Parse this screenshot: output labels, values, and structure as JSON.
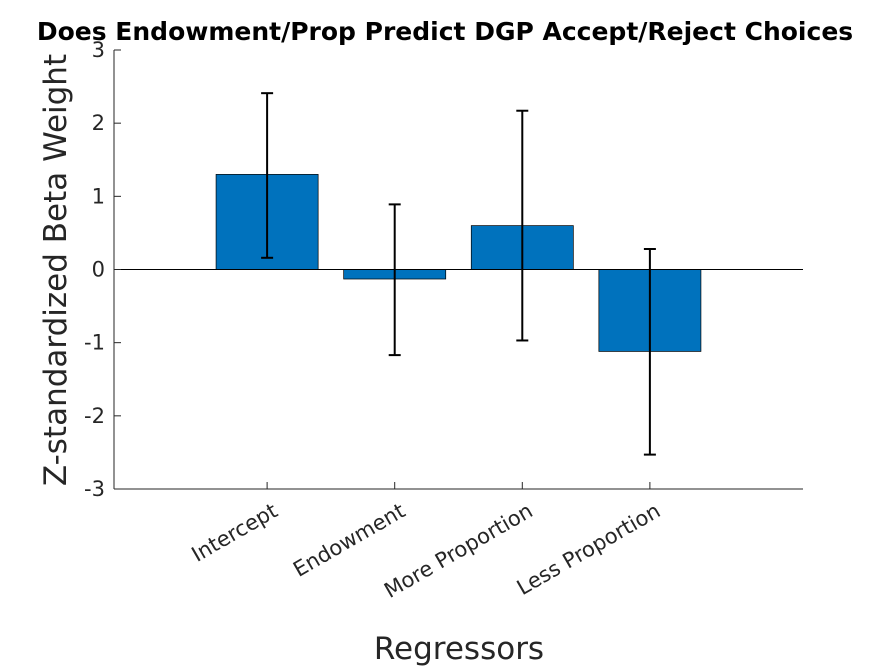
{
  "chart_data": {
    "type": "bar",
    "title": "Does Endowment/Prop Predict DGP Accept/Reject Choices",
    "xlabel": "Regressors",
    "ylabel": "Z-standardized Beta Weight",
    "categories": [
      "Intercept",
      "Endowment",
      "More Proportion",
      "Less Proportion"
    ],
    "values": [
      1.3,
      -0.13,
      0.6,
      -1.12
    ],
    "error_bars": [
      {
        "lower": 0.16,
        "upper": 2.41
      },
      {
        "lower": -1.17,
        "upper": 0.89
      },
      {
        "lower": -0.97,
        "upper": 2.17
      },
      {
        "lower": -2.53,
        "upper": 0.28
      }
    ],
    "ylim": [
      -3,
      3
    ],
    "yticks": [
      "-3",
      "-2",
      "-1",
      "0",
      "1",
      "2",
      "3"
    ],
    "grid": false,
    "bar_color": "#0072BD"
  }
}
